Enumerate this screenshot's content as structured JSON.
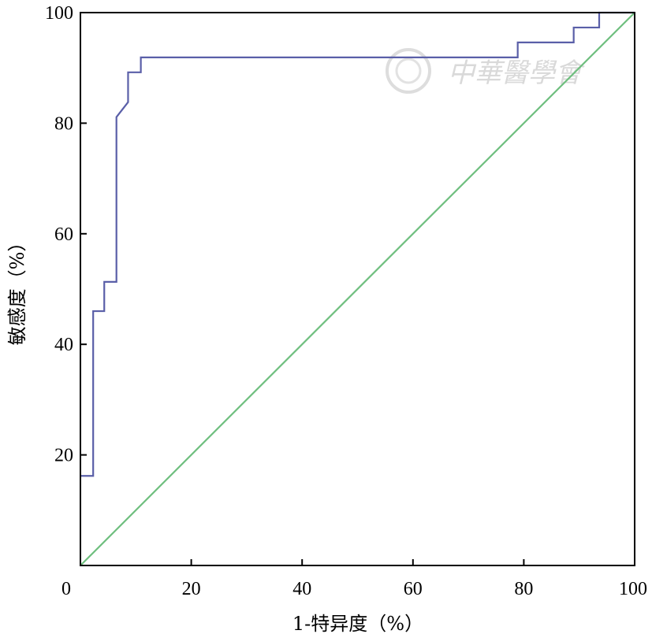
{
  "chart_data": {
    "type": "line",
    "title": "",
    "xlabel": "1-特异度（%）",
    "ylabel": "敏感度（%）",
    "xlim": [
      0,
      100
    ],
    "ylim": [
      0,
      100
    ],
    "x_ticks": [
      0,
      20,
      40,
      60,
      80,
      100
    ],
    "y_ticks": [
      20,
      40,
      60,
      80,
      100
    ],
    "grid": false,
    "watermark": "中華醫學會",
    "colors": {
      "roc": "#5a5fa8",
      "reference": "#6fbf7f",
      "axis": "#000000"
    },
    "series": [
      {
        "x": [
          0,
          2.3,
          2.3,
          4.3,
          4.3,
          6.5,
          6.5,
          8.6,
          8.6,
          10.9,
          10.9,
          78.9,
          78.9,
          89.0,
          89.0,
          93.6,
          93.6,
          100
        ],
        "y": [
          16.2,
          16.2,
          46.0,
          46.0,
          51.3,
          51.3,
          81.1,
          83.8,
          89.2,
          89.2,
          91.9,
          91.9,
          94.6,
          94.6,
          97.3,
          97.3,
          100,
          100
        ]
      },
      {
        "x": [
          0,
          100
        ],
        "y": [
          0,
          100
        ]
      }
    ]
  }
}
